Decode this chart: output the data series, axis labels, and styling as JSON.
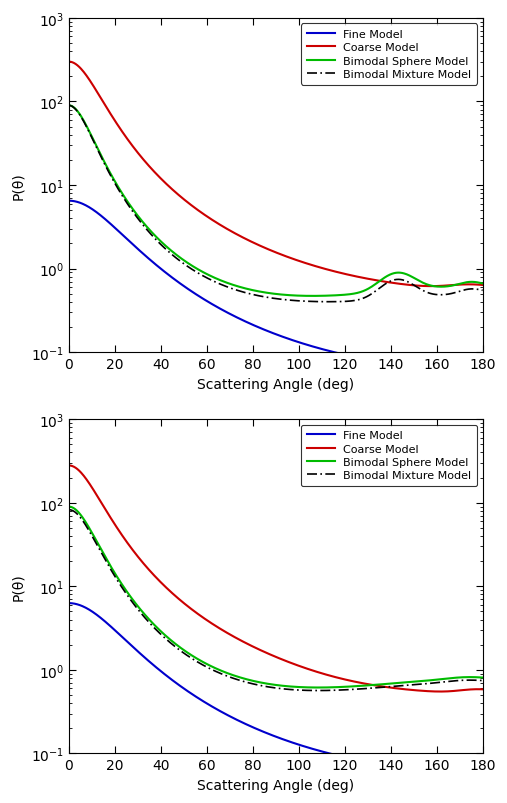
{
  "xlabel": "Scattering Angle (deg)",
  "ylabel": "P(θ)",
  "xlim": [
    0,
    180
  ],
  "ylim": [
    0.1,
    1000
  ],
  "xticks": [
    0,
    20,
    40,
    60,
    80,
    100,
    120,
    140,
    160,
    180
  ],
  "legend_labels": [
    "Fine Model",
    "Coarse Model",
    "Bimodal Sphere Model",
    "Bimodal Mixture Model"
  ],
  "colors": {
    "fine": "#0000cc",
    "coarse": "#cc0000",
    "bimodal_sphere": "#00bb00",
    "bimodal_mixture": "#000000"
  },
  "linewidths": {
    "fine": 1.5,
    "coarse": 1.5,
    "bimodal_sphere": 1.5,
    "bimodal_mixture": 1.2
  },
  "fig_size": [
    5.07,
    8.04
  ],
  "dpi": 100,
  "background_color": "#ffffff"
}
